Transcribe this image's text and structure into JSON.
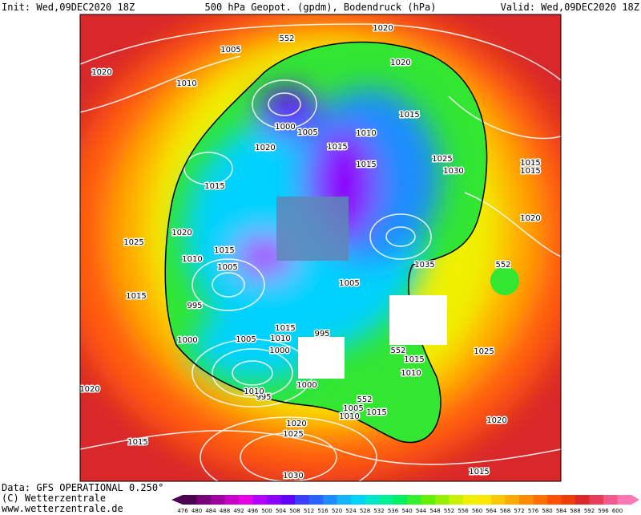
{
  "header": {
    "init": "Init: Wed,09DEC2020 18Z",
    "title": "500 hPa Geopot. (gpdm), Bodendruck (hPa)",
    "valid": "Valid: Wed,09DEC2020 18Z"
  },
  "footer": {
    "data": "Data: GFS OPERATIONAL 0.250°",
    "copyright": "(C) Wetterzentrale",
    "url": "www.wetterzentrale.de"
  },
  "map": {
    "isobar_labels": [
      "1020",
      "1005",
      "552",
      "1020",
      "1010",
      "1020",
      "1015",
      "1000",
      "1005",
      "1010",
      "1015",
      "1020",
      "1015",
      "1025",
      "1030",
      "1015",
      "1015",
      "1015",
      "1020",
      "1020",
      "1025",
      "1010",
      "1015",
      "1005",
      "1035",
      "552",
      "1005",
      "1015",
      "995",
      "1015",
      "995",
      "1005",
      "1010",
      "1000",
      "1000",
      "552",
      "1015",
      "1010",
      "1025",
      "1000",
      "995",
      "1020",
      "1005",
      "1010",
      "1015",
      "1020",
      "1025",
      "1020",
      "1015",
      "1030",
      "1015",
      "552",
      "1010"
    ]
  },
  "colorbar": {
    "values": [
      476,
      480,
      484,
      488,
      492,
      496,
      500,
      504,
      508,
      512,
      516,
      520,
      524,
      528,
      532,
      536,
      540,
      544,
      548,
      552,
      556,
      560,
      564,
      568,
      572,
      576,
      580,
      584,
      588,
      592,
      596,
      600
    ],
    "colors": [
      "#4b0050",
      "#780078",
      "#a000a0",
      "#c800c8",
      "#e600e6",
      "#b400ff",
      "#8c00ff",
      "#6400ff",
      "#3c3cff",
      "#2864ff",
      "#1e8cff",
      "#14b4ff",
      "#00d2ff",
      "#00e6c8",
      "#00f096",
      "#00f064",
      "#32f032",
      "#64f000",
      "#96f000",
      "#c8f000",
      "#f0f000",
      "#ffe600",
      "#ffc800",
      "#ffaa00",
      "#ff8c00",
      "#ff6e00",
      "#ff5000",
      "#f03c00",
      "#dc2828",
      "#e63c5a",
      "#f05a8c",
      "#ff78b4"
    ]
  }
}
